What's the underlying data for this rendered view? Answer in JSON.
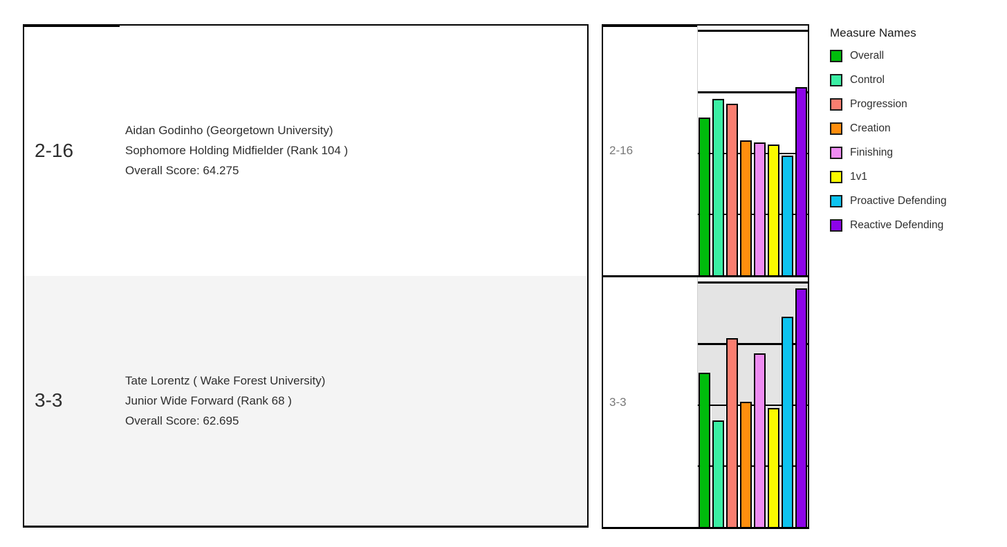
{
  "players": [
    {
      "row_label": "2-16",
      "name_line": "Aidan Godinho (Georgetown University)",
      "position_line": "Sophomore Holding Midfielder  (Rank 104 )",
      "score_line": "Overall Score: 64.275"
    },
    {
      "row_label": "3-3",
      "name_line": "Tate Lorentz ( Wake Forest University)",
      "position_line": "Junior Wide Forward  (Rank 68 )",
      "score_line": "Overall Score: 62.695"
    }
  ],
  "legend": {
    "title": "Measure Names",
    "items": [
      {
        "label": "Overall",
        "color": "#00BC0C"
      },
      {
        "label": "Control",
        "color": "#3BEEA4"
      },
      {
        "label": "Progression",
        "color": "#FB7E70"
      },
      {
        "label": "Creation",
        "color": "#FF8E0E"
      },
      {
        "label": "Finishing",
        "color": "#EE8CF2"
      },
      {
        "label": "1v1",
        "color": "#FAFA00"
      },
      {
        "label": "Proactive Defending",
        "color": "#0DC3EF"
      },
      {
        "label": "Reactive Defending",
        "color": "#8D04E8"
      }
    ]
  },
  "chart_data": {
    "type": "bar",
    "title": "",
    "categories": [
      "Overall",
      "Control",
      "Progression",
      "Creation",
      "Finishing",
      "1v1",
      "Proactive Defending",
      "Reactive Defending"
    ],
    "series": [
      {
        "name": "2-16 Aidan Godinho",
        "values": [
          64.275,
          71.8,
          69.8,
          54.9,
          54.0,
          53.3,
          48.8,
          76.7
        ]
      },
      {
        "name": "3-3 Tate Lorentz",
        "values": [
          62.695,
          43.5,
          77.0,
          51.0,
          70.7,
          48.5,
          85.5,
          97.2
        ]
      }
    ],
    "colors": [
      "#00BC0C",
      "#3BEEA4",
      "#FB7E70",
      "#FF8E0E",
      "#EE8CF2",
      "#FAFA00",
      "#0DC3EF",
      "#8D04E8"
    ],
    "ylim": [
      0,
      100
    ],
    "gridlines": [
      25,
      50,
      75,
      100
    ],
    "grid_on": true,
    "legend_position": "right",
    "reference_band": {
      "applies_to_row": "3-3",
      "from": 50,
      "to": 100,
      "extends_to_bar_tops_below": 50,
      "color": "#e4e4e4"
    },
    "row_banding_color": "#f4f4f4",
    "bar_outline_color": "#000000"
  }
}
